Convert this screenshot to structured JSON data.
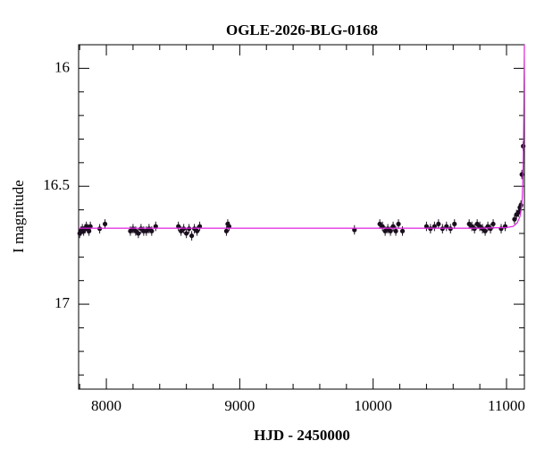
{
  "chart_data": {
    "type": "scatter",
    "title": "OGLE-2026-BLG-0168",
    "xlabel": "HJD - 2450000",
    "ylabel": "I magnitude",
    "xlim": [
      7792,
      11134
    ],
    "ylim": [
      17.36,
      15.9
    ],
    "xticks": [
      8000,
      9000,
      10000,
      11000
    ],
    "xminorticks": [
      7800,
      8200,
      8400,
      8600,
      8800,
      9200,
      9400,
      9600,
      9800,
      10200,
      10400,
      10600,
      10800
    ],
    "yticks": [
      16,
      16.5,
      17
    ],
    "yminorticks": [
      16.1,
      16.2,
      16.3,
      16.4,
      16.6,
      16.7,
      16.8,
      16.9,
      17.1,
      17.2,
      17.3
    ],
    "series": [
      {
        "color": "#1a0f1e",
        "x": [
          7800,
          7810,
          7820,
          7830,
          7840,
          7850,
          7860,
          7870,
          7880,
          7950,
          7990,
          8180,
          8200,
          8220,
          8240,
          8260,
          8280,
          8300,
          8320,
          8340,
          8370,
          8540,
          8560,
          8580,
          8600,
          8620,
          8640,
          8660,
          8680,
          8700,
          8900,
          8910,
          8920,
          9860,
          10050,
          10070,
          10090,
          10110,
          10130,
          10150,
          10170,
          10190,
          10220,
          10400,
          10430,
          10460,
          10490,
          10520,
          10550,
          10580,
          10610,
          10720,
          10740,
          10760,
          10780,
          10800,
          10820,
          10840,
          10860,
          10880,
          10900,
          10960,
          10990,
          11060,
          11075,
          11090,
          11100,
          11108,
          11115,
          11125
        ],
        "values": [
          16.7,
          16.69,
          16.68,
          16.69,
          16.68,
          16.67,
          16.68,
          16.69,
          16.67,
          16.68,
          16.66,
          16.69,
          16.68,
          16.69,
          16.7,
          16.68,
          16.69,
          16.69,
          16.68,
          16.69,
          16.67,
          16.67,
          16.69,
          16.68,
          16.7,
          16.68,
          16.71,
          16.68,
          16.69,
          16.67,
          16.69,
          16.66,
          16.67,
          16.685,
          16.66,
          16.67,
          16.69,
          16.68,
          16.69,
          16.67,
          16.69,
          16.66,
          16.69,
          16.67,
          16.68,
          16.67,
          16.66,
          16.68,
          16.67,
          16.68,
          16.66,
          16.66,
          16.67,
          16.68,
          16.66,
          16.67,
          16.68,
          16.69,
          16.67,
          16.68,
          16.66,
          16.68,
          16.67,
          16.64,
          16.62,
          16.61,
          16.59,
          16.58,
          16.45,
          16.33
        ],
        "errors": [
          0.02,
          0.02,
          0.02,
          0.02,
          0.02,
          0.02,
          0.02,
          0.02,
          0.02,
          0.02,
          0.02,
          0.02,
          0.02,
          0.02,
          0.02,
          0.02,
          0.02,
          0.02,
          0.02,
          0.02,
          0.02,
          0.02,
          0.02,
          0.02,
          0.02,
          0.02,
          0.02,
          0.02,
          0.02,
          0.02,
          0.02,
          0.02,
          0.02,
          0.02,
          0.02,
          0.02,
          0.02,
          0.02,
          0.02,
          0.02,
          0.02,
          0.02,
          0.02,
          0.02,
          0.02,
          0.02,
          0.02,
          0.02,
          0.02,
          0.02,
          0.02,
          0.02,
          0.02,
          0.02,
          0.02,
          0.02,
          0.02,
          0.02,
          0.02,
          0.02,
          0.02,
          0.02,
          0.02,
          0.02,
          0.02,
          0.02,
          0.02,
          0.02,
          0.02,
          0.02
        ]
      },
      {
        "type": "line",
        "color": "#e020e0",
        "x": [
          7792,
          10800,
          11000,
          11050,
          11080,
          11100,
          11110,
          11118,
          11124,
          11128,
          11131,
          11134
        ],
        "values": [
          16.678,
          16.678,
          16.675,
          16.67,
          16.655,
          16.63,
          16.6,
          16.55,
          16.45,
          16.3,
          16.1,
          15.9
        ]
      }
    ]
  }
}
